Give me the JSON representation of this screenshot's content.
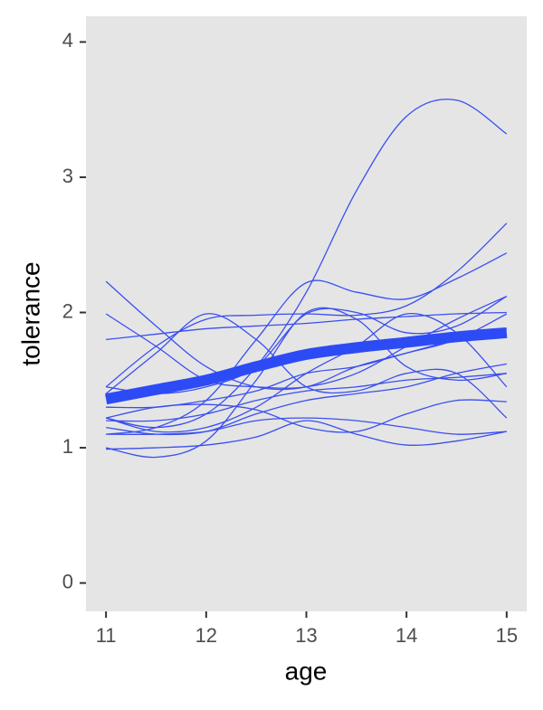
{
  "chart_data": {
    "type": "line",
    "x_label": "age",
    "y_label": "tolerance",
    "x": [
      11,
      11.5,
      12,
      12.5,
      13,
      13.5,
      14,
      14.5,
      15
    ],
    "xlim": [
      10.8,
      15.2
    ],
    "ylim": [
      -0.21,
      4.19
    ],
    "xticks": [
      11,
      12,
      13,
      14,
      15
    ],
    "yticks": [
      0,
      1,
      2,
      3,
      4
    ],
    "grid": false,
    "background": "#e5e5e5",
    "smooth_curves": true,
    "series": [
      {
        "color": "#3a4ff0",
        "values": [
          1.22,
          1.15,
          1.25,
          1.6,
          2.15,
          2.9,
          3.45,
          3.57,
          3.32
        ]
      },
      {
        "color": "#3a4ff0",
        "values": [
          1.45,
          1.75,
          1.95,
          1.98,
          1.99,
          1.98,
          2.05,
          2.3,
          2.66
        ]
      },
      {
        "color": "#3a4ff0",
        "values": [
          1.1,
          1.15,
          1.35,
          1.8,
          2.22,
          2.15,
          2.1,
          2.25,
          2.44
        ]
      },
      {
        "color": "#3a4ff0",
        "values": [
          2.23,
          1.9,
          1.6,
          1.45,
          1.45,
          1.6,
          1.7,
          1.8,
          1.99
        ]
      },
      {
        "color": "#3a4ff0",
        "values": [
          1.99,
          1.75,
          1.5,
          1.45,
          1.45,
          1.55,
          1.75,
          1.95,
          2.12
        ]
      },
      {
        "color": "#3a4ff0",
        "values": [
          1.8,
          1.84,
          1.88,
          1.9,
          1.92,
          1.95,
          1.97,
          1.99,
          2.0
        ]
      },
      {
        "color": "#3a4ff0",
        "values": [
          1.0,
          0.93,
          1.05,
          1.5,
          2.0,
          1.95,
          1.6,
          1.5,
          1.55
        ]
      },
      {
        "color": "#3a4ff0",
        "values": [
          1.22,
          1.3,
          1.32,
          1.28,
          1.15,
          1.12,
          1.25,
          1.35,
          1.34
        ]
      },
      {
        "color": "#3a4ff0",
        "values": [
          1.4,
          1.7,
          1.99,
          1.8,
          1.45,
          1.42,
          1.55,
          1.55,
          1.22
        ]
      },
      {
        "color": "#3a4ff0",
        "values": [
          1.1,
          1.1,
          1.12,
          1.2,
          1.22,
          1.2,
          1.15,
          1.1,
          1.12
        ]
      },
      {
        "color": "#3a4ff0",
        "values": [
          0.99,
          1.0,
          1.02,
          1.08,
          1.2,
          1.1,
          1.02,
          1.05,
          1.12
        ]
      },
      {
        "color": "#3a4ff0",
        "values": [
          1.22,
          1.12,
          1.15,
          1.3,
          1.55,
          1.75,
          1.99,
          1.85,
          1.45
        ]
      },
      {
        "color": "#3a4ff0",
        "values": [
          1.2,
          1.2,
          1.25,
          1.35,
          1.42,
          1.45,
          1.5,
          1.52,
          1.55
        ]
      },
      {
        "color": "#3a4ff0",
        "values": [
          1.45,
          1.4,
          1.45,
          1.6,
          1.99,
          2.0,
          1.85,
          1.9,
          2.12
        ]
      },
      {
        "color": "#3a4ff0",
        "values": [
          1.3,
          1.3,
          1.35,
          1.42,
          1.55,
          1.6,
          1.7,
          1.8,
          1.88
        ]
      },
      {
        "color": "#3a4ff0",
        "values": [
          1.15,
          1.1,
          1.12,
          1.25,
          1.35,
          1.4,
          1.45,
          1.55,
          1.62
        ]
      }
    ],
    "smooth": {
      "color": "#2c4bf5",
      "values": [
        1.36,
        1.43,
        1.5,
        1.6,
        1.69,
        1.74,
        1.78,
        1.82,
        1.85
      ]
    }
  }
}
